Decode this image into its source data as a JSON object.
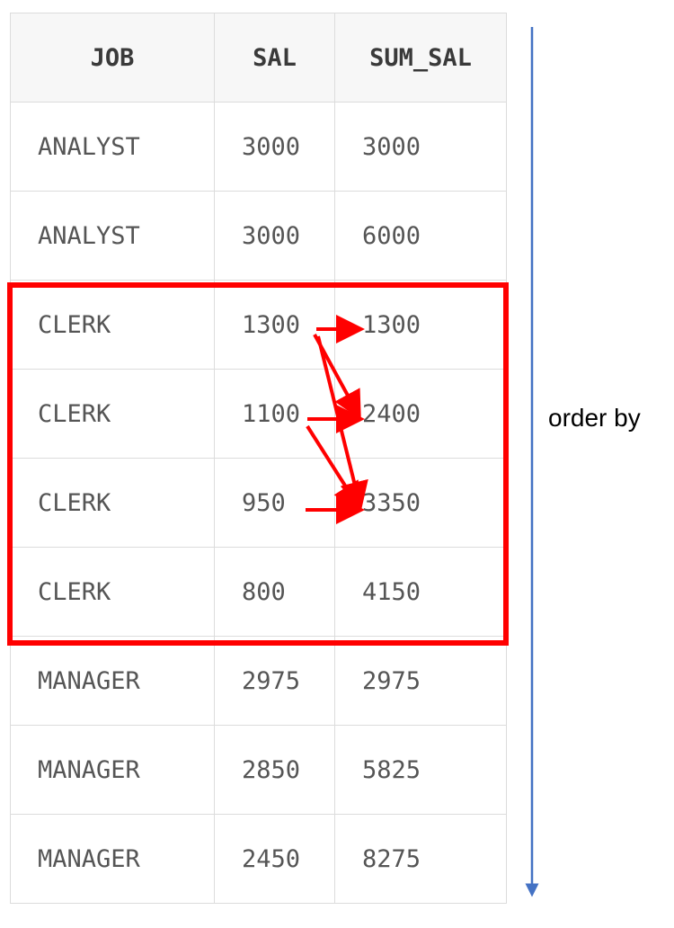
{
  "table": {
    "headers": [
      "JOB",
      "SAL",
      "SUM_SAL"
    ],
    "rows": [
      [
        "ANALYST",
        "3000",
        "3000"
      ],
      [
        "ANALYST",
        "3000",
        "6000"
      ],
      [
        "CLERK",
        "1300",
        "1300"
      ],
      [
        "CLERK",
        "1100",
        "2400"
      ],
      [
        "CLERK",
        "950",
        "3350"
      ],
      [
        "CLERK",
        "800",
        "4150"
      ],
      [
        "MANAGER",
        "2975",
        "2975"
      ],
      [
        "MANAGER",
        "2850",
        "5825"
      ],
      [
        "MANAGER",
        "2450",
        "8275"
      ]
    ]
  },
  "annotation": {
    "order_label": "order by",
    "highlight_color": "#ff0000",
    "arrow_color": "#4472c4"
  }
}
